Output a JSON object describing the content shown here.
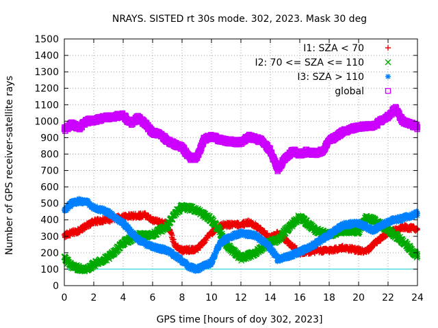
{
  "chart_data": {
    "type": "scatter",
    "title": "NRAYS. SISTED rt 30s mode. 302, 2023. Mask 30 deg",
    "xlabel": "GPS time [hours of doy 302, 2023]",
    "ylabel": "Number of GPS receiver-satellite rays",
    "xlim": [
      0,
      24
    ],
    "ylim": [
      0,
      1500
    ],
    "xticks": [
      "0",
      "2",
      "4",
      "6",
      "8",
      "10",
      "12",
      "14",
      "16",
      "18",
      "20",
      "22",
      "24"
    ],
    "yticks": [
      "0",
      "100",
      "200",
      "300",
      "400",
      "500",
      "600",
      "700",
      "800",
      "900",
      "1000",
      "1100",
      "1200",
      "1300",
      "1400",
      "1500"
    ],
    "grid": true,
    "legend_position": "top-right",
    "reference_line": {
      "y": 100,
      "color": "#00d0d0"
    },
    "series": [
      {
        "name": "I1: SZA < 70",
        "marker": "+",
        "color": "#ee0000",
        "x": [
          0,
          1,
          2,
          2.5,
          3,
          4,
          5,
          5.5,
          6,
          7,
          7.5,
          8,
          9,
          10,
          10.5,
          11,
          12,
          12.5,
          13,
          14,
          14.5,
          15,
          16,
          17,
          18,
          19,
          20,
          20.5,
          21,
          22,
          23,
          24
        ],
        "y": [
          305,
          335,
          390,
          395,
          400,
          420,
          425,
          430,
          395,
          375,
          250,
          215,
          220,
          320,
          360,
          370,
          370,
          385,
          365,
          290,
          320,
          280,
          200,
          210,
          215,
          230,
          215,
          205,
          250,
          320,
          355,
          345
        ]
      },
      {
        "name": "I2: 70 <= SZA <= 110",
        "marker": "x",
        "color": "#00aa00",
        "x": [
          0,
          0.5,
          1,
          1.5,
          2,
          3,
          4,
          5,
          6,
          7,
          7.5,
          8,
          9,
          10,
          10.5,
          11,
          12,
          13,
          14,
          14.5,
          15,
          16,
          17,
          18,
          19,
          20,
          20.5,
          21,
          22,
          23,
          24
        ],
        "y": [
          170,
          120,
          105,
          100,
          130,
          170,
          260,
          305,
          310,
          360,
          440,
          480,
          460,
          400,
          340,
          250,
          165,
          200,
          270,
          275,
          330,
          420,
          340,
          310,
          335,
          330,
          410,
          400,
          340,
          270,
          180
        ]
      },
      {
        "name": "I3: SZA > 110",
        "marker": "*",
        "color": "#0080ff",
        "x": [
          0,
          0.5,
          1,
          1.5,
          2,
          3,
          4,
          5,
          6,
          7,
          8,
          8.5,
          9,
          10,
          10.5,
          11,
          12,
          13,
          14,
          14.5,
          15,
          16,
          17,
          18,
          19,
          20,
          21,
          22,
          23,
          24
        ],
        "y": [
          455,
          500,
          515,
          510,
          475,
          445,
          380,
          280,
          235,
          215,
          150,
          115,
          100,
          140,
          245,
          285,
          320,
          305,
          230,
          160,
          170,
          205,
          250,
          310,
          370,
          380,
          335,
          390,
          410,
          440
        ]
      },
      {
        "name": "global",
        "marker": "square",
        "color": "#cc00ff",
        "x": [
          0,
          0.5,
          1,
          1.5,
          2,
          3,
          3.5,
          4,
          4.5,
          5,
          5.5,
          6,
          6.5,
          7,
          8,
          8.5,
          9,
          9.5,
          10,
          10.5,
          11,
          12,
          12.5,
          13,
          13.5,
          14,
          14.5,
          15,
          15.5,
          16,
          16.5,
          17,
          17.5,
          18,
          19,
          20,
          21,
          22,
          22.5,
          23,
          24
        ],
        "y": [
          950,
          980,
          960,
          1000,
          1005,
          1025,
          1030,
          1035,
          985,
          1020,
          985,
          930,
          925,
          880,
          840,
          780,
          775,
          890,
          905,
          890,
          880,
          870,
          905,
          895,
          875,
          820,
          710,
          770,
          820,
          800,
          815,
          805,
          815,
          880,
          940,
          965,
          970,
          1030,
          1075,
          1000,
          965
        ]
      }
    ]
  }
}
